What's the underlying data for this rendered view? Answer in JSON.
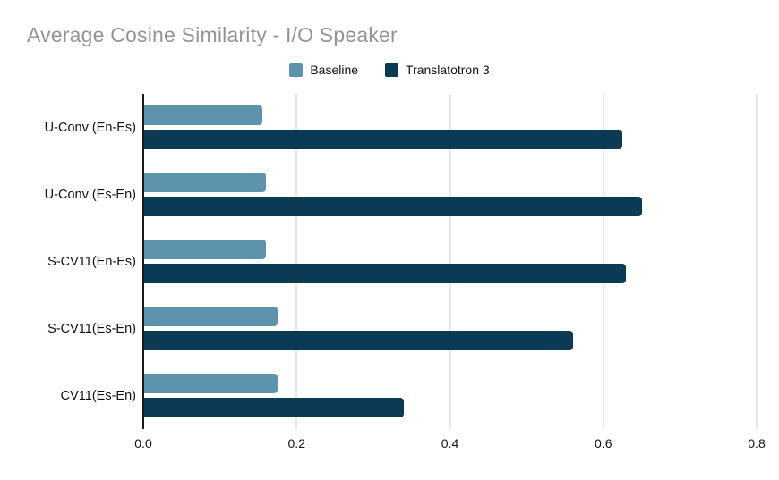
{
  "title": "Average Cosine Similarity - I/O Speaker",
  "chart_data": {
    "type": "bar",
    "orientation": "horizontal",
    "title": "Average Cosine Similarity - I/O Speaker",
    "categories": [
      "U-Conv (En-Es)",
      "U-Conv (Es-En)",
      "S-CV11(En-Es)",
      "S-CV11(Es-En)",
      "CV11(Es-En)"
    ],
    "series": [
      {
        "name": "Baseline",
        "color": "#5d93ac",
        "values": [
          0.155,
          0.16,
          0.16,
          0.175,
          0.175
        ]
      },
      {
        "name": "Translatotron 3",
        "color": "#0b3a54",
        "values": [
          0.625,
          0.65,
          0.63,
          0.56,
          0.34
        ]
      }
    ],
    "xlim": [
      0,
      0.8
    ],
    "xticks": [
      "0.0",
      "0.2",
      "0.4",
      "0.6",
      "0.8"
    ],
    "xlabel": "",
    "ylabel": "",
    "grid": true,
    "legend_position": "top"
  }
}
